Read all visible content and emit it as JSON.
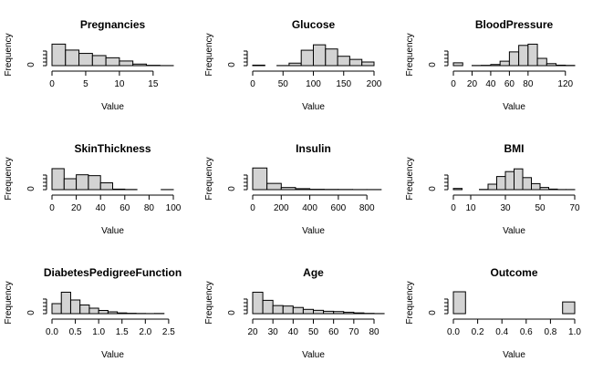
{
  "figure": {
    "layout": "3x3 grid of histograms",
    "colors": {
      "bar_fill": "#d3d3d3",
      "bar_stroke": "#000000",
      "axis": "#000000",
      "background": "#ffffff"
    }
  },
  "chart_data": [
    {
      "type": "bar",
      "title": "Pregnancies",
      "xlabel": "Value",
      "ylabel": "Frequency",
      "xlim": [
        0,
        18
      ],
      "xticks": [
        0,
        5,
        10,
        15
      ],
      "xtick_labels": [
        "0",
        "5",
        "10",
        "15"
      ],
      "yticks": [
        0
      ],
      "ytick_labels": [
        "0"
      ],
      "ylim": [
        0,
        250
      ],
      "bin_edges": [
        0,
        2,
        4,
        6,
        8,
        10,
        12,
        14,
        16,
        18
      ],
      "values": [
        246,
        178,
        140,
        115,
        90,
        53,
        18,
        4,
        1
      ]
    },
    {
      "type": "bar",
      "title": "Glucose",
      "xlabel": "Value",
      "ylabel": "Frequency",
      "xlim": [
        0,
        200
      ],
      "xticks": [
        0,
        50,
        100,
        150,
        200
      ],
      "xtick_labels": [
        "0",
        "50",
        "100",
        "150",
        "200"
      ],
      "yticks": [
        0
      ],
      "ytick_labels": [
        "0"
      ],
      "ylim": [
        0,
        210
      ],
      "bin_edges": [
        0,
        20,
        40,
        60,
        80,
        100,
        120,
        140,
        160,
        180,
        200
      ],
      "values": [
        5,
        0,
        1,
        24,
        148,
        200,
        160,
        90,
        60,
        35
      ]
    },
    {
      "type": "bar",
      "title": "BloodPressure",
      "xlabel": "Value",
      "ylabel": "Frequency",
      "xlim": [
        0,
        130
      ],
      "xticks": [
        0,
        20,
        40,
        60,
        80,
        120
      ],
      "xtick_labels": [
        "0",
        "20",
        "40",
        "60",
        "80",
        "120"
      ],
      "yticks": [
        0
      ],
      "ytick_labels": [
        "0"
      ],
      "ylim": [
        0,
        270
      ],
      "bin_edges": [
        0,
        10,
        20,
        30,
        40,
        50,
        60,
        70,
        80,
        90,
        100,
        110,
        120,
        130
      ],
      "values": [
        35,
        0,
        2,
        4,
        14,
        55,
        170,
        250,
        265,
        90,
        25,
        6,
        3
      ]
    },
    {
      "type": "bar",
      "title": "SkinThickness",
      "xlabel": "Value",
      "ylabel": "Frequency",
      "xlim": [
        0,
        100
      ],
      "xticks": [
        0,
        20,
        40,
        60,
        80,
        100
      ],
      "xtick_labels": [
        "0",
        "20",
        "40",
        "60",
        "80",
        "100"
      ],
      "yticks": [
        0
      ],
      "ytick_labels": [
        "0"
      ],
      "ylim": [
        0,
        250
      ],
      "bin_edges": [
        0,
        10,
        20,
        30,
        40,
        50,
        60,
        70,
        80,
        90,
        100
      ],
      "values": [
        240,
        125,
        170,
        160,
        78,
        6,
        2,
        0,
        0,
        1
      ]
    },
    {
      "type": "bar",
      "title": "Insulin",
      "xlabel": "Value",
      "ylabel": "Frequency",
      "xlim": [
        0,
        850
      ],
      "xticks": [
        0,
        200,
        400,
        600,
        800
      ],
      "xtick_labels": [
        "0",
        "200",
        "400",
        "600",
        "800"
      ],
      "yticks": [
        0
      ],
      "ytick_labels": [
        "0"
      ],
      "ylim": [
        0,
        490
      ],
      "bin_edges": [
        0,
        100,
        200,
        300,
        400,
        500,
        600,
        700,
        800,
        900
      ],
      "values": [
        485,
        140,
        48,
        22,
        8,
        5,
        4,
        2,
        2
      ]
    },
    {
      "type": "bar",
      "title": "BMI",
      "xlabel": "Value",
      "ylabel": "Frequency",
      "xlim": [
        0,
        70
      ],
      "xticks": [
        0,
        10,
        30,
        50,
        70
      ],
      "xtick_labels": [
        "0",
        "10",
        "30",
        "50",
        "70"
      ],
      "yticks": [
        0
      ],
      "ytick_labels": [
        "0"
      ],
      "ylim": [
        0,
        200
      ],
      "bin_edges": [
        0,
        5,
        10,
        15,
        20,
        25,
        30,
        35,
        40,
        45,
        50,
        55,
        60,
        65,
        70
      ],
      "values": [
        11,
        0,
        0,
        2,
        50,
        120,
        165,
        190,
        110,
        55,
        20,
        5,
        1,
        1
      ]
    },
    {
      "type": "bar",
      "title": "DiabetesPedigreeFunction",
      "xlabel": "Value",
      "ylabel": "Frequency",
      "xlim": [
        0,
        2.6
      ],
      "xticks": [
        0,
        0.5,
        1.0,
        1.5,
        2.0,
        2.5
      ],
      "xtick_labels": [
        "0.0",
        "0.5",
        "1.0",
        "1.5",
        "2.0",
        "2.5"
      ],
      "yticks": [
        0
      ],
      "ytick_labels": [
        "0"
      ],
      "ylim": [
        0,
        240
      ],
      "bin_edges": [
        0,
        0.2,
        0.4,
        0.6,
        0.8,
        1.0,
        1.2,
        1.4,
        1.6,
        1.8,
        2.0,
        2.2,
        2.4
      ],
      "values": [
        110,
        235,
        150,
        95,
        60,
        35,
        20,
        8,
        4,
        2,
        1,
        2
      ]
    },
    {
      "type": "bar",
      "title": "Age",
      "xlabel": "Value",
      "ylabel": "Frequency",
      "xlim": [
        20,
        80
      ],
      "xticks": [
        20,
        30,
        40,
        50,
        60,
        70,
        80
      ],
      "xtick_labels": [
        "20",
        "30",
        "40",
        "50",
        "60",
        "70",
        "80"
      ],
      "yticks": [
        0
      ],
      "ytick_labels": [
        "0"
      ],
      "ylim": [
        0,
        230
      ],
      "bin_edges": [
        20,
        25,
        30,
        35,
        40,
        45,
        50,
        55,
        60,
        65,
        70,
        75,
        80,
        85
      ],
      "values": [
        225,
        140,
        85,
        80,
        65,
        45,
        35,
        25,
        22,
        15,
        8,
        3,
        1
      ]
    },
    {
      "type": "bar",
      "title": "Outcome",
      "xlabel": "Value",
      "ylabel": "Frequency",
      "xlim": [
        0,
        1
      ],
      "xticks": [
        0,
        0.2,
        0.4,
        0.6,
        0.8,
        1.0
      ],
      "xtick_labels": [
        "0.0",
        "0.2",
        "0.4",
        "0.6",
        "0.8",
        "1.0"
      ],
      "yticks": [
        0
      ],
      "ytick_labels": [
        "0"
      ],
      "ylim": [
        0,
        500
      ],
      "bin_edges": [
        0,
        0.1,
        0.2,
        0.3,
        0.4,
        0.5,
        0.6,
        0.7,
        0.8,
        0.9,
        1.0
      ],
      "values": [
        500,
        0,
        0,
        0,
        0,
        0,
        0,
        0,
        0,
        268
      ]
    }
  ]
}
